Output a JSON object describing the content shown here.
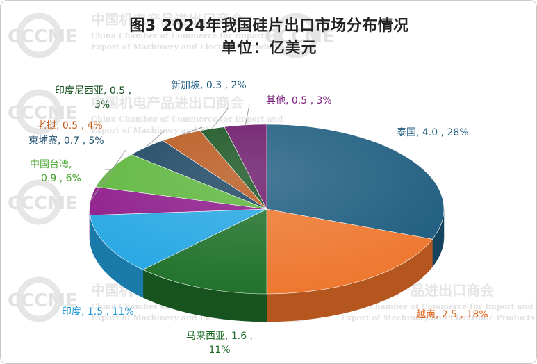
{
  "chart_data": {
    "type": "pie",
    "title": "图3  2024年我国硅片出口市场分布情况",
    "subtitle": "单位：亿美元",
    "slices": [
      {
        "name": "泰国",
        "value": 4.0,
        "percent": 28,
        "color": "#1f5d80",
        "side": "#16435d",
        "label_color": "#1f5d80",
        "label_lines": [
          "泰国, 4.0 , 28%"
        ]
      },
      {
        "name": "越南",
        "value": 2.5,
        "percent": 18,
        "color": "#ee7830",
        "side": "#b5561e",
        "label_color": "#e0651b",
        "label_lines": [
          "越南, 2.5 , 18%"
        ]
      },
      {
        "name": "马来西亚",
        "value": 1.6,
        "percent": 11,
        "color": "#22722c",
        "side": "#17531f",
        "label_color": "#1d6b24",
        "label_lines": [
          "马来西亚, 1.6 ,",
          "11%"
        ]
      },
      {
        "name": "印度",
        "value": 1.5,
        "percent": 11,
        "color": "#26a7e3",
        "side": "#1a7bab",
        "label_color": "#1f98d6",
        "label_lines": [
          "印度, 1.5 , 11%"
        ]
      },
      {
        "name": "柬埔寨",
        "value": 0.7,
        "percent": 5,
        "color": "#8d1a8a",
        "side": "#641362",
        "label_color": "#1f4f6e",
        "label_lines": [
          "柬埔寨, 0.7 , 5%"
        ]
      },
      {
        "name": "中国台湾",
        "value": 0.9,
        "percent": 6,
        "color": "#5db53c",
        "side": "#41852a",
        "label_color": "#46a52e",
        "label_lines": [
          "中国台湾,",
          "0.9 , 6%"
        ]
      },
      {
        "name": "老挝",
        "value": 0.5,
        "percent": 4,
        "color": "#1b4461",
        "side": "#122f44",
        "label_color": "#c45a14",
        "label_lines": [
          "老挝, 0.5 , 4%"
        ]
      },
      {
        "name": "印度尼西亚",
        "value": 0.5,
        "percent": 3,
        "color": "#b9581d",
        "side": "#8a4115",
        "label_color": "#17531f",
        "label_lines": [
          "印度尼西亚, 0.5 ,",
          "3%"
        ]
      },
      {
        "name": "新加坡",
        "value": 0.3,
        "percent": 2,
        "color": "#17531f",
        "side": "#0f3a15",
        "label_color": "#1f5d80",
        "label_lines": [
          "新加坡, 0.3 , 2%"
        ]
      },
      {
        "name": "其他",
        "value": 0.5,
        "percent": 3,
        "color": "#6a1768",
        "side": "#4a0f48",
        "label_color": "#7b1f7b",
        "label_lines": [
          "其他, 0.5 , 3%"
        ]
      }
    ]
  },
  "watermark": {
    "logo": "CCCME",
    "org_cn": "中国机电产品进出口商会",
    "org_en_line1": "China Chamber of Commerce for Import and",
    "org_en_line2": "Export of Machinery and Electronic Products"
  }
}
